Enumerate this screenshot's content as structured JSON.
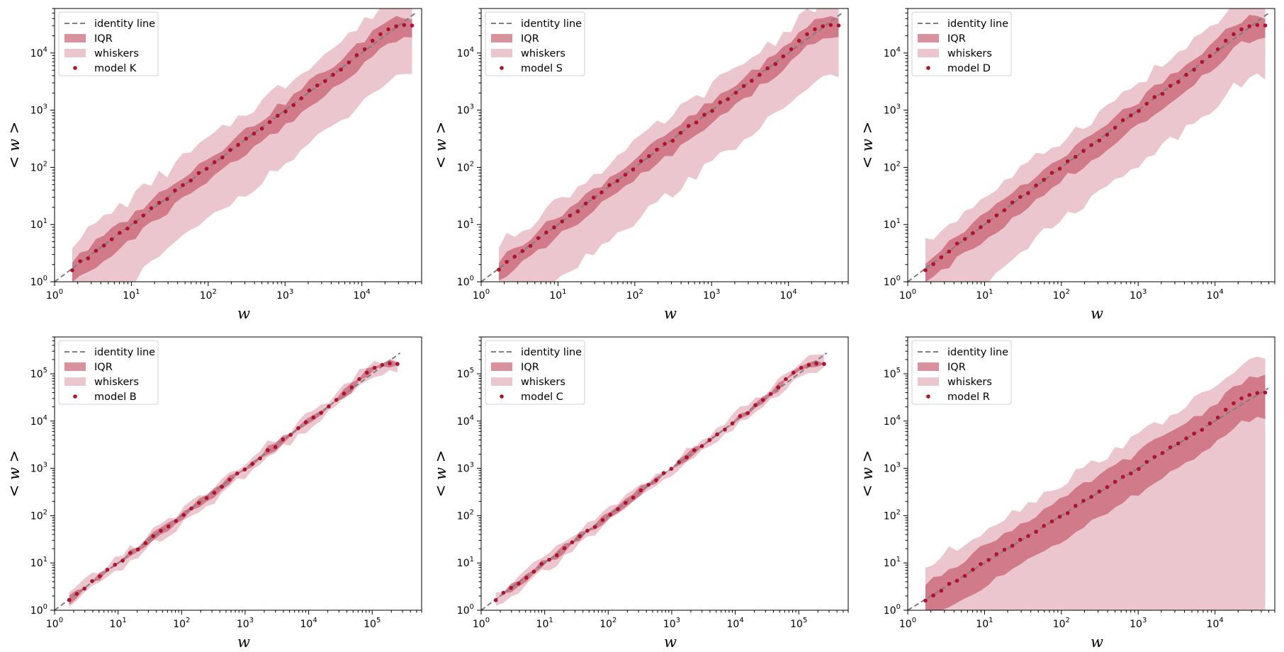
{
  "colors": {
    "marker": "#b0122e",
    "iqr": "#c0485e",
    "whiskers": "#dc97a6",
    "identity": "#7f7f7f"
  },
  "chart_data": [
    {
      "type": "scatter",
      "model": "model K",
      "xlabel": "w",
      "ylabel": "< w >",
      "xscale": "log",
      "yscale": "log",
      "xlim": [
        1,
        60000
      ],
      "ylim": [
        1,
        60000
      ],
      "xticks": [
        "10^0",
        "10^1",
        "10^2",
        "10^3",
        "10^4"
      ],
      "yticks": [
        "10^0",
        "10^1",
        "10^2",
        "10^3",
        "10^4"
      ],
      "legend": [
        "identity line",
        "IQR",
        "whiskers",
        "model K"
      ],
      "x_max": 45000,
      "y_end": 30000,
      "iqr_low_factor": 0.55,
      "iqr_high_factor": 1.45,
      "whisker_low_factor": 0.12,
      "whisker_high_factor": 3.0,
      "whisker_cut_x": 12
    },
    {
      "type": "scatter",
      "model": "model S",
      "xlabel": "w",
      "ylabel": "< w >",
      "xscale": "log",
      "yscale": "log",
      "xlim": [
        1,
        60000
      ],
      "ylim": [
        1,
        60000
      ],
      "xticks": [
        "10^0",
        "10^1",
        "10^2",
        "10^3",
        "10^4"
      ],
      "yticks": [
        "10^0",
        "10^1",
        "10^2",
        "10^3",
        "10^4"
      ],
      "legend": [
        "identity line",
        "IQR",
        "whiskers",
        "model S"
      ],
      "x_max": 45000,
      "y_end": 30000,
      "iqr_low_factor": 0.6,
      "iqr_high_factor": 1.4,
      "whisker_low_factor": 0.12,
      "whisker_high_factor": 2.6,
      "whisker_cut_x": 11
    },
    {
      "type": "scatter",
      "model": "model D",
      "xlabel": "w",
      "ylabel": "< w >",
      "xscale": "log",
      "yscale": "log",
      "xlim": [
        1,
        60000
      ],
      "ylim": [
        1,
        60000
      ],
      "xticks": [
        "10^0",
        "10^1",
        "10^2",
        "10^3",
        "10^4"
      ],
      "yticks": [
        "10^0",
        "10^1",
        "10^2",
        "10^3",
        "10^4"
      ],
      "legend": [
        "identity line",
        "IQR",
        "whiskers",
        "model D"
      ],
      "x_max": 45000,
      "y_end": 30000,
      "iqr_low_factor": 0.55,
      "iqr_high_factor": 1.45,
      "whisker_low_factor": 0.12,
      "whisker_high_factor": 3.0,
      "whisker_cut_x": 13
    },
    {
      "type": "scatter",
      "model": "model B",
      "xlabel": "w",
      "ylabel": "< w >",
      "xscale": "log",
      "yscale": "log",
      "xlim": [
        1,
        600000
      ],
      "ylim": [
        1,
        600000
      ],
      "xticks": [
        "10^0",
        "10^1",
        "10^2",
        "10^3",
        "10^4",
        "10^5"
      ],
      "yticks": [
        "10^0",
        "10^1",
        "10^2",
        "10^3",
        "10^4",
        "10^5"
      ],
      "legend": [
        "identity line",
        "IQR",
        "whiskers",
        "model B"
      ],
      "x_max": 250000,
      "y_end": 160000,
      "iqr_low_factor": 0.88,
      "iqr_high_factor": 1.12,
      "whisker_low_factor": 0.72,
      "whisker_high_factor": 1.3,
      "whisker_cut_x": null
    },
    {
      "type": "scatter",
      "model": "model C",
      "xlabel": "w",
      "ylabel": "< w >",
      "xscale": "log",
      "yscale": "log",
      "xlim": [
        1,
        600000
      ],
      "ylim": [
        1,
        600000
      ],
      "xticks": [
        "10^0",
        "10^1",
        "10^2",
        "10^3",
        "10^4",
        "10^5"
      ],
      "yticks": [
        "10^0",
        "10^1",
        "10^2",
        "10^3",
        "10^4",
        "10^5"
      ],
      "legend": [
        "identity line",
        "IQR",
        "whiskers",
        "model C"
      ],
      "x_max": 250000,
      "y_end": 160000,
      "iqr_low_factor": 0.88,
      "iqr_high_factor": 1.12,
      "whisker_low_factor": 0.72,
      "whisker_high_factor": 1.3,
      "whisker_cut_x": null
    },
    {
      "type": "scatter",
      "model": "model R",
      "xlabel": "w",
      "ylabel": "< w >",
      "xscale": "log",
      "yscale": "log",
      "xlim": [
        1,
        60000
      ],
      "ylim": [
        1,
        600000
      ],
      "xticks": [
        "10^0",
        "10^1",
        "10^2",
        "10^3",
        "10^4"
      ],
      "yticks": [
        "10^0",
        "10^1",
        "10^2",
        "10^3",
        "10^4",
        "10^5"
      ],
      "legend": [
        "identity line",
        "IQR",
        "whiskers",
        "model R"
      ],
      "x_max": 45000,
      "y_end": 40000,
      "iqr_low_factor": 0.3,
      "iqr_high_factor": 2.2,
      "whisker_low_factor": 0,
      "whisker_high_factor": 5.0,
      "whisker_cut_x": 2
    }
  ]
}
